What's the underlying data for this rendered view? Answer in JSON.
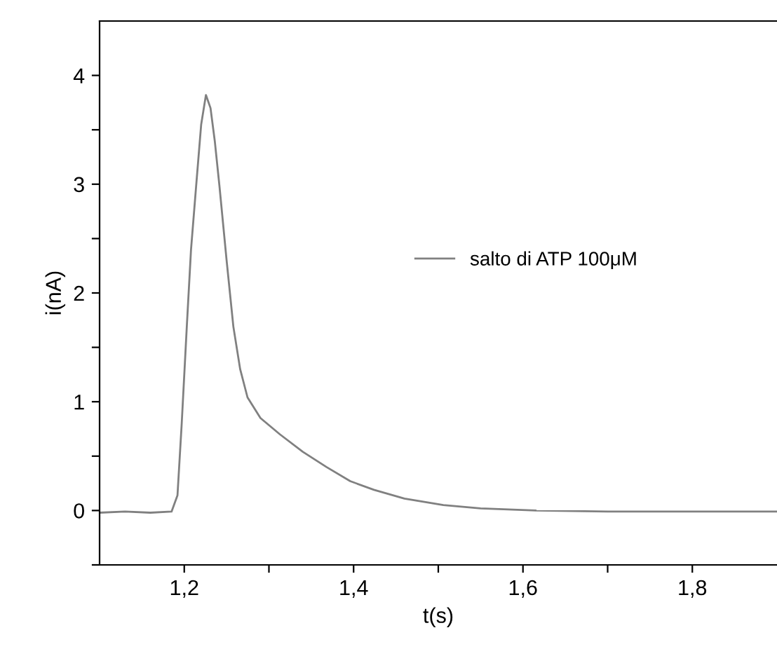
{
  "chart_data": {
    "type": "line",
    "xlabel": "t(s)",
    "ylabel": "i(nA)",
    "legend": "center",
    "grid": false,
    "marker": "none",
    "line_style": "solid",
    "xlim": [
      1.1,
      1.9
    ],
    "ylim": [
      -0.5,
      4.5
    ],
    "xticks": [
      {
        "value": 1.2,
        "label": "1,2"
      },
      {
        "value": 1.3,
        "label": null
      },
      {
        "value": 1.4,
        "label": "1,4"
      },
      {
        "value": 1.5,
        "label": null
      },
      {
        "value": 1.6,
        "label": "1,6"
      },
      {
        "value": 1.7,
        "label": null
      },
      {
        "value": 1.8,
        "label": "1,8"
      }
    ],
    "yticks": [
      {
        "value": -0.5,
        "label": null
      },
      0,
      {
        "value": 0.5,
        "label": null
      },
      1,
      {
        "value": 1.5,
        "label": null
      },
      2,
      {
        "value": 2.5,
        "label": null
      },
      3,
      {
        "value": 3.5,
        "label": null
      },
      4
    ],
    "series": [
      {
        "name": "salto di ATP 100μM",
        "color": "#808080",
        "x": [
          1.1,
          1.13,
          1.16,
          1.185,
          1.192,
          1.197,
          1.203,
          1.208,
          1.214,
          1.22,
          1.2256,
          1.231,
          1.236,
          1.2416,
          1.25,
          1.258,
          1.266,
          1.2747,
          1.29,
          1.313,
          1.34,
          1.368,
          1.396,
          1.424,
          1.46,
          1.506,
          1.55,
          1.616,
          1.7,
          1.8,
          1.9
        ],
        "values": [
          -0.02,
          -0.01,
          -0.02,
          -0.01,
          0.14,
          0.8,
          1.69,
          2.4,
          2.98,
          3.55,
          3.82,
          3.7,
          3.4,
          2.98,
          2.3,
          1.69,
          1.3,
          1.04,
          0.85,
          0.7,
          0.54,
          0.4,
          0.27,
          0.19,
          0.11,
          0.05,
          0.02,
          0.0,
          -0.01,
          -0.01,
          -0.01
        ]
      }
    ]
  }
}
